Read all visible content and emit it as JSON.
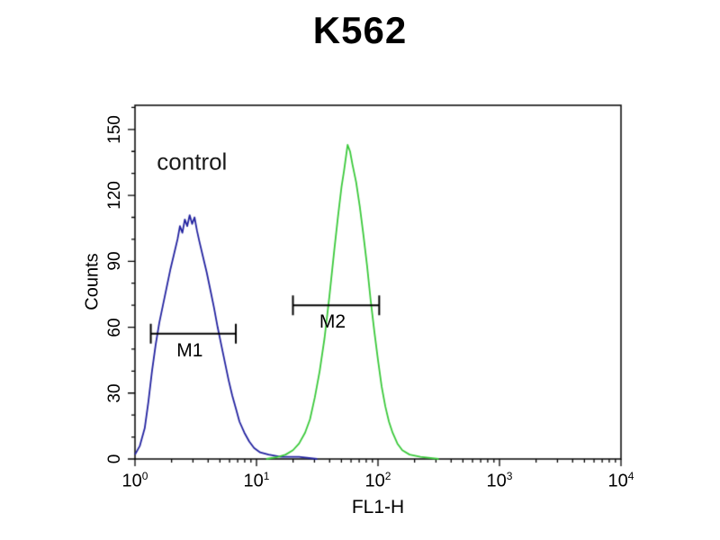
{
  "chart_data": {
    "type": "line",
    "title": "K562",
    "xlabel": "FL1-H",
    "ylabel": "Counts",
    "x_scale": "log10",
    "xlim_log10": [
      0,
      4
    ],
    "ylim": [
      0,
      161
    ],
    "x_tick_exponents": [
      0,
      1,
      2,
      3,
      4
    ],
    "y_ticks": [
      0,
      30,
      60,
      90,
      120,
      150
    ],
    "grid": false,
    "legend": "none",
    "background": "#ffffff",
    "frame_color": "#000000",
    "annotations": [
      {
        "text": "control",
        "log10x": 0.18,
        "counts": 135
      }
    ],
    "gates": [
      {
        "label": "M1",
        "counts": 57,
        "log10x_from": 0.13,
        "log10x_to": 0.83
      },
      {
        "label": "M2",
        "counts": 70,
        "log10x_from": 1.3,
        "log10x_to": 2.01
      }
    ],
    "series": [
      {
        "name": "control-blue",
        "color": "#2323a0",
        "points": [
          [
            0.0,
            2
          ],
          [
            0.04,
            6
          ],
          [
            0.08,
            14
          ],
          [
            0.11,
            26
          ],
          [
            0.14,
            40
          ],
          [
            0.17,
            52
          ],
          [
            0.2,
            62
          ],
          [
            0.23,
            70
          ],
          [
            0.26,
            78
          ],
          [
            0.29,
            86
          ],
          [
            0.32,
            93
          ],
          [
            0.35,
            100
          ],
          [
            0.37,
            106
          ],
          [
            0.39,
            103
          ],
          [
            0.41,
            109
          ],
          [
            0.43,
            106
          ],
          [
            0.45,
            111
          ],
          [
            0.47,
            107
          ],
          [
            0.49,
            110
          ],
          [
            0.51,
            104
          ],
          [
            0.53,
            99
          ],
          [
            0.56,
            92
          ],
          [
            0.59,
            85
          ],
          [
            0.62,
            77
          ],
          [
            0.65,
            69
          ],
          [
            0.68,
            60
          ],
          [
            0.71,
            52
          ],
          [
            0.74,
            44
          ],
          [
            0.77,
            36
          ],
          [
            0.8,
            29
          ],
          [
            0.83,
            23
          ],
          [
            0.86,
            17
          ],
          [
            0.9,
            12
          ],
          [
            0.94,
            8
          ],
          [
            0.98,
            5
          ],
          [
            1.03,
            3
          ],
          [
            1.1,
            2
          ],
          [
            1.2,
            1
          ],
          [
            1.35,
            1
          ],
          [
            1.5,
            0
          ]
        ]
      },
      {
        "name": "sample-green",
        "color": "#3bc93b",
        "points": [
          [
            1.08,
            0
          ],
          [
            1.18,
            1
          ],
          [
            1.24,
            2
          ],
          [
            1.3,
            4
          ],
          [
            1.35,
            7
          ],
          [
            1.4,
            12
          ],
          [
            1.44,
            18
          ],
          [
            1.48,
            28
          ],
          [
            1.52,
            40
          ],
          [
            1.56,
            55
          ],
          [
            1.6,
            74
          ],
          [
            1.64,
            95
          ],
          [
            1.67,
            110
          ],
          [
            1.7,
            124
          ],
          [
            1.72,
            131
          ],
          [
            1.74,
            139
          ],
          [
            1.75,
            143
          ],
          [
            1.77,
            140
          ],
          [
            1.79,
            134
          ],
          [
            1.82,
            126
          ],
          [
            1.85,
            115
          ],
          [
            1.88,
            102
          ],
          [
            1.91,
            88
          ],
          [
            1.94,
            72
          ],
          [
            1.97,
            58
          ],
          [
            2.0,
            45
          ],
          [
            2.03,
            33
          ],
          [
            2.06,
            24
          ],
          [
            2.09,
            17
          ],
          [
            2.12,
            12
          ],
          [
            2.16,
            7
          ],
          [
            2.2,
            4
          ],
          [
            2.26,
            2
          ],
          [
            2.35,
            1
          ],
          [
            2.5,
            0
          ]
        ]
      }
    ]
  }
}
